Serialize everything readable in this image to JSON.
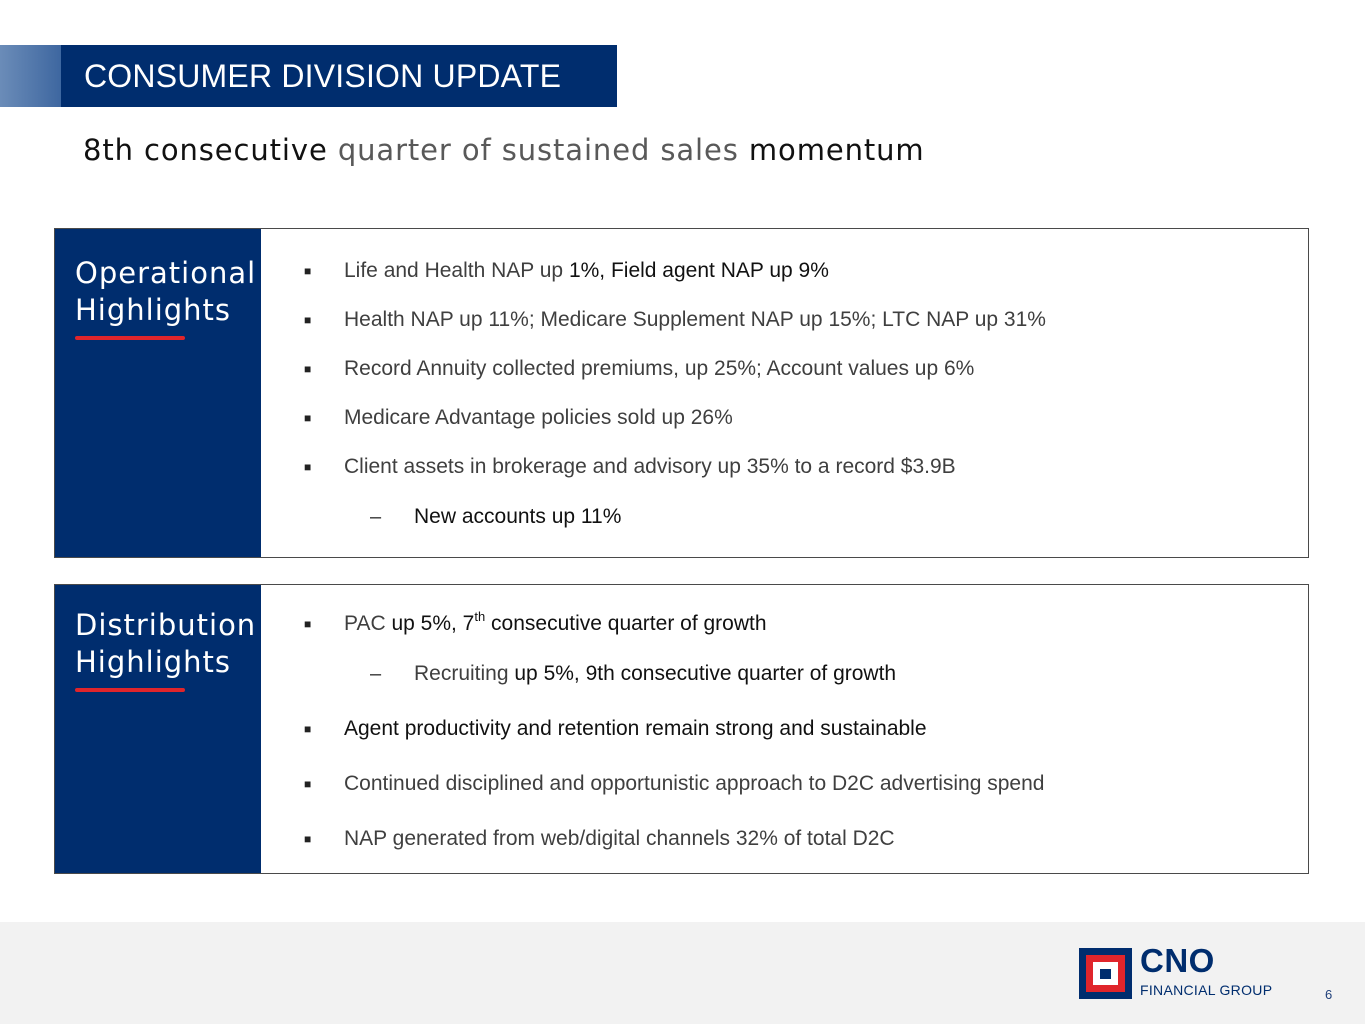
{
  "header": {
    "title": "CONSUMER DIVISION UPDATE"
  },
  "subtitle": {
    "part1": "8th consecutive",
    "part2": "quarter of sustained sales",
    "part3": "momentum"
  },
  "operational": {
    "title_line1": "Operational",
    "title_line2": "Highlights",
    "bullets": [
      {
        "a": "Life and Health NAP up ",
        "b": "1%, Field agent NAP up 9%"
      },
      {
        "a": "Health NAP up 11%; Medicare Supplement NAP up 15%; LTC NAP up 31%"
      },
      {
        "a": "Record Annuity collected premiums, up 25%; Account values up 6%"
      },
      {
        "a": "Medicare Advantage policies sold up 26%"
      },
      {
        "a": "Client assets in brokerage and advisory up 35% to a record $3.9B"
      }
    ],
    "sub_bullet": "New accounts up 11%"
  },
  "distribution": {
    "title_line1": "Distribution",
    "title_line2": "Highlights",
    "pac": {
      "a": "PAC",
      "b": " up 5%, 7",
      "sup": "th",
      "c": " consecutive quarter of growth"
    },
    "recruiting": {
      "a": "Recruiting",
      "b": " up 5%, 9th consecutive quarter of growth"
    },
    "bullets": [
      "Agent productivity and retention remain strong and sustainable",
      "Continued disciplined and opportunistic approach to D2C advertising spend",
      "NAP generated from web/digital channels 32% of total D2C"
    ]
  },
  "markers": {
    "bullet": "■",
    "dash": "–"
  },
  "footer": {
    "logo_name": "CNO",
    "logo_sub": "FINANCIAL GROUP",
    "page": "6"
  },
  "colors": {
    "navy": "#002d6e",
    "accent_red": "#e0252b",
    "footer_bg": "#f2f2f2"
  }
}
